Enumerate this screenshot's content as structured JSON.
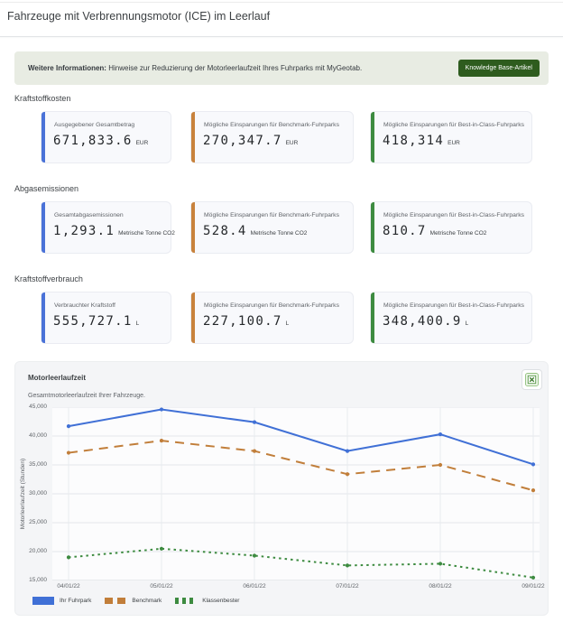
{
  "page": {
    "title": "Fahrzeuge mit Verbrennungsmotor (ICE) im Leerlauf"
  },
  "banner": {
    "prefix": "Weitere Informationen:",
    "text": "Hinweise zur Reduzierung der Motorleerlaufzeit Ihres Fuhrparks mit MyGeotab.",
    "button_label": "Knowledge Base-Artikel",
    "button_color": "#2e5c1e"
  },
  "icons": {
    "export_chart": "excel-table-icon"
  },
  "sections": [
    {
      "title": "Kraftstoffkosten",
      "cards": [
        {
          "label": "Ausgegebener Gesamtbetrag",
          "value": "671,833.6",
          "unit": "EUR",
          "accent": "#4a72d8"
        },
        {
          "label": "Mögliche Einsparungen für Benchmark-Fuhrparks",
          "value": "270,347.7",
          "unit": "EUR",
          "accent": "#c8823c"
        },
        {
          "label": "Mögliche Einsparungen für Best-in-Class-Fuhrparks",
          "value": "418,314",
          "unit": "EUR",
          "accent": "#3d8b40"
        }
      ]
    },
    {
      "title": "Abgasemissionen",
      "cards": [
        {
          "label": "Gesamtabgasemissionen",
          "value": "1,293.1",
          "unit": "Metrische Tonne CO2",
          "accent": "#4a72d8"
        },
        {
          "label": "Mögliche Einsparungen für Benchmark-Fuhrparks",
          "value": "528.4",
          "unit": "Metrische Tonne CO2",
          "accent": "#c8823c"
        },
        {
          "label": "Mögliche Einsparungen für Best-in-Class-Fuhrparks",
          "value": "810.7",
          "unit": "Metrische Tonne CO2",
          "accent": "#3d8b40"
        }
      ]
    },
    {
      "title": "Kraftstoffverbrauch",
      "cards": [
        {
          "label": "Verbrauchter Kraftstoff",
          "value": "555,727.1",
          "unit": "L",
          "accent": "#4a72d8"
        },
        {
          "label": "Mögliche Einsparungen für Benchmark-Fuhrparks",
          "value": "227,100.7",
          "unit": "L",
          "accent": "#c8823c"
        },
        {
          "label": "Mögliche Einsparungen für Best-in-Class-Fuhrparks",
          "value": "348,400.9",
          "unit": "L",
          "accent": "#3d8b40"
        }
      ]
    }
  ],
  "chart_data": {
    "type": "line",
    "title": "Motorleerlaufzeit",
    "subtitle": "Gesamtmotorleerlaufzeit Ihrer Fahrzeuge.",
    "ylabel": "Motorleerlaufzeit (Stunden)",
    "x": [
      "04/01/22",
      "05/01/22",
      "06/01/22",
      "07/01/22",
      "08/01/22",
      "09/01/22"
    ],
    "ylim": [
      15000,
      45000
    ],
    "ytick_step": 5000,
    "grid": true,
    "legend_position": "bottom-left",
    "series": [
      {
        "name": "Ihr Fuhrpark",
        "style": "solid",
        "color": "#4070d6",
        "values": [
          41700,
          44600,
          42400,
          37400,
          40300,
          35100
        ]
      },
      {
        "name": "Benchmark",
        "style": "dashed",
        "color": "#c17e3a",
        "values": [
          37100,
          39200,
          37400,
          33400,
          35000,
          30600
        ]
      },
      {
        "name": "Klassenbester",
        "style": "dotted",
        "color": "#3d8b40",
        "values": [
          19000,
          20500,
          19300,
          17600,
          17900,
          15500
        ]
      }
    ]
  }
}
